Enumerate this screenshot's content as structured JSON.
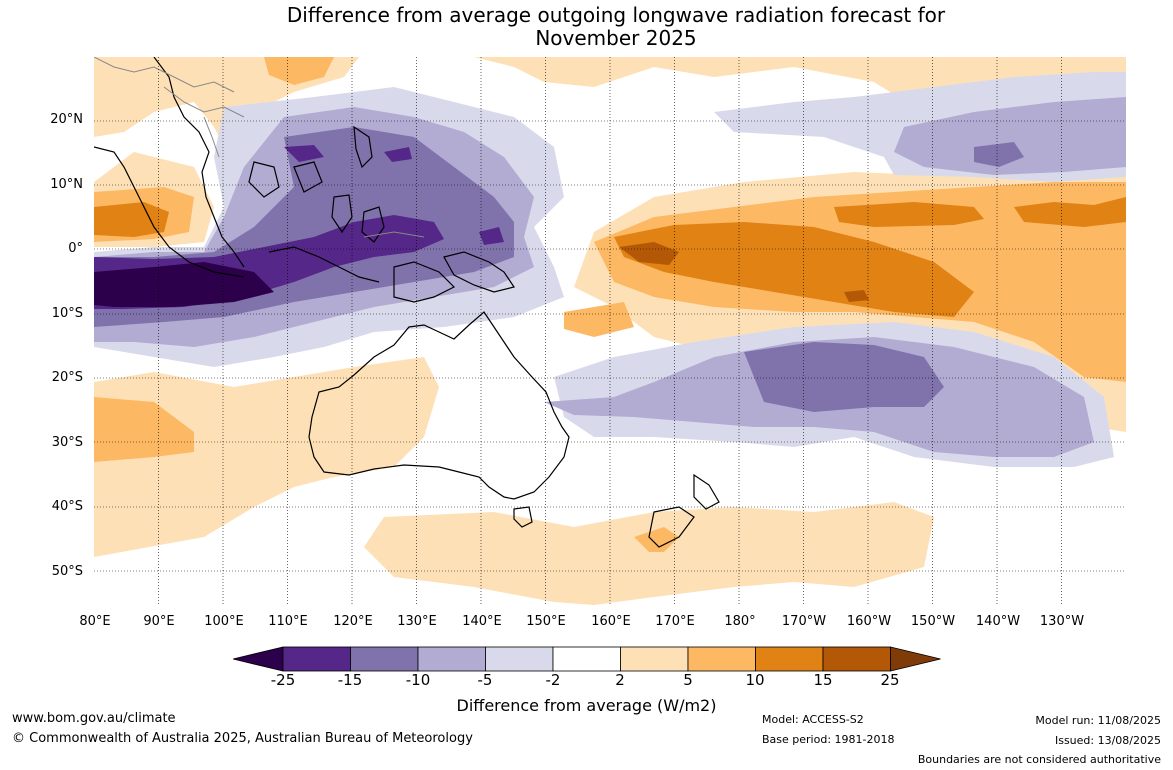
{
  "title_line1": "Difference from average outgoing longwave radiation forecast for",
  "title_line2": "November 2025",
  "map": {
    "lat_labels": [
      "20°N",
      "10°N",
      "0°",
      "10°S",
      "20°S",
      "30°S",
      "40°S",
      "50°S"
    ],
    "lon_labels": [
      "80°E",
      "90°E",
      "100°E",
      "110°E",
      "120°E",
      "130°E",
      "140°E",
      "150°E",
      "160°E",
      "170°E",
      "180°",
      "170°W",
      "160°W",
      "150°W",
      "140°W",
      "130°W"
    ]
  },
  "colorbar": {
    "ticks": [
      "-25",
      "-15",
      "-10",
      "-5",
      "-2",
      "2",
      "5",
      "10",
      "15",
      "25"
    ],
    "colors": [
      "#2d004b",
      "#542788",
      "#8073ac",
      "#b2abd2",
      "#d8daeb",
      "#ffffff",
      "#fee0b6",
      "#fdb863",
      "#e08214",
      "#b35806",
      "#7f3b08"
    ],
    "label": "Difference from average (W/m2)"
  },
  "footer": {
    "website": "www.bom.gov.au/climate",
    "copyright": "© Commonwealth of Australia 2025, Australian Bureau of Meteorology",
    "model": "Model: ACCESS-S2",
    "base_period": "Base period: 1981-2018",
    "model_run": "Model run: 11/08/2025",
    "issued": "Issued: 13/08/2025",
    "disclaimer": "Boundaries are not considered authoritative"
  }
}
